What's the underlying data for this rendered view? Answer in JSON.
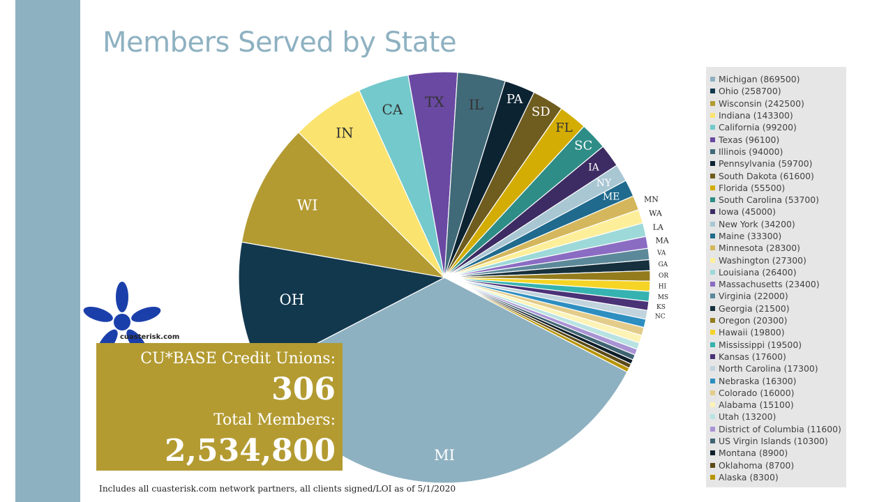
{
  "title": "Members Served by State",
  "footnote": "Includes all cuasterisk.com network partners, all clients signed/LOI as of 5/1/2020",
  "logo": {
    "text": "cuasterisk.com",
    "icon": "blue-asterisk-icon",
    "color": "#1b3faa"
  },
  "stats": {
    "cu_label": "CU*BASE Credit Unions:",
    "cu_value": "306",
    "members_label": "Total Members:",
    "members_value": "2,534,800"
  },
  "chart_data": {
    "type": "pie",
    "title": "Members Served by State",
    "legend_position": "right",
    "slices": [
      {
        "label": "MI",
        "legend": "Michigan (869500)",
        "value": 869500,
        "color": "#8eb1c1"
      },
      {
        "label": "OH",
        "legend": "Ohio (258700)",
        "value": 258700,
        "color": "#12384e"
      },
      {
        "label": "WI",
        "legend": "Wisconsin (242500)",
        "value": 242500,
        "color": "#b39b32"
      },
      {
        "label": "IN",
        "legend": "Indiana (143300)",
        "value": 143300,
        "color": "#fbe36f"
      },
      {
        "label": "CA",
        "legend": "California (99200)",
        "value": 99200,
        "color": "#73c9cb"
      },
      {
        "label": "TX",
        "legend": "Texas (96100)",
        "value": 96100,
        "color": "#6a49a3"
      },
      {
        "label": "IL",
        "legend": "Illinois (94000)",
        "value": 94000,
        "color": "#416a79"
      },
      {
        "label": "PA",
        "legend": "Pennsylvania (59700)",
        "value": 59700,
        "color": "#0c2332"
      },
      {
        "label": "SD",
        "legend": "South Dakota (61600)",
        "value": 61600,
        "color": "#6f5c1f"
      },
      {
        "label": "FL",
        "legend": "Florida (55500)",
        "value": 55500,
        "color": "#d3ad04"
      },
      {
        "label": "SC",
        "legend": "South Carolina (53700)",
        "value": 53700,
        "color": "#2e8d87"
      },
      {
        "label": "IA",
        "legend": "Iowa (45000)",
        "value": 45000,
        "color": "#3d2c63"
      },
      {
        "label": "NY",
        "legend": "New York (34200)",
        "value": 34200,
        "color": "#a9c6d3"
      },
      {
        "label": "ME",
        "legend": "Maine (33300)",
        "value": 33300,
        "color": "#1f6a8d"
      },
      {
        "label": "MN",
        "legend": "Minnesota (28300)",
        "value": 28300,
        "color": "#d4b75c"
      },
      {
        "label": "WA",
        "legend": "Washington (27300)",
        "value": 27300,
        "color": "#fdef9a"
      },
      {
        "label": "LA",
        "legend": "Louisiana (26400)",
        "value": 26400,
        "color": "#9dd9d8"
      },
      {
        "label": "MA",
        "legend": "Massachusetts (23400)",
        "value": 23400,
        "color": "#8b6cc3"
      },
      {
        "label": "VA",
        "legend": "Virginia (22000)",
        "value": 22000,
        "color": "#5c899a"
      },
      {
        "label": "GA",
        "legend": "Georgia (21500)",
        "value": 21500,
        "color": "#16303d"
      },
      {
        "label": "OR",
        "legend": "Oregon (20300)",
        "value": 20300,
        "color": "#947b1c"
      },
      {
        "label": "HI",
        "legend": "Hawaii (19800)",
        "value": 19800,
        "color": "#f5d425"
      },
      {
        "label": "MS",
        "legend": "Mississippi (19500)",
        "value": 19500,
        "color": "#36b3b0"
      },
      {
        "label": "KS",
        "legend": "Kansas (17600)",
        "value": 17600,
        "color": "#4a3277"
      },
      {
        "label": "NC",
        "legend": "North Carolina (17300)",
        "value": 17300,
        "color": "#c1d3dd"
      },
      {
        "label": "",
        "legend": "Nebraska (16300)",
        "value": 16300,
        "color": "#2d8ec0"
      },
      {
        "label": "",
        "legend": "Colorado (16000)",
        "value": 16000,
        "color": "#e3cc8a"
      },
      {
        "label": "",
        "legend": "Alabama (15100)",
        "value": 15100,
        "color": "#fdf3b5"
      },
      {
        "label": "",
        "legend": "Utah (13200)",
        "value": 13200,
        "color": "#b9e3e2"
      },
      {
        "label": "",
        "legend": "District of Columbia (11600)",
        "value": 11600,
        "color": "#a893d3"
      },
      {
        "label": "",
        "legend": "US Virgin Islands (10300)",
        "value": 10300,
        "color": "#3f6473"
      },
      {
        "label": "",
        "legend": "Montana (8900)",
        "value": 8900,
        "color": "#0f1e28"
      },
      {
        "label": "",
        "legend": "Oklahoma (8700)",
        "value": 8700,
        "color": "#5c4a18"
      },
      {
        "label": "",
        "legend": "Alaska (8300)",
        "value": 8300,
        "color": "#b89500"
      }
    ]
  }
}
